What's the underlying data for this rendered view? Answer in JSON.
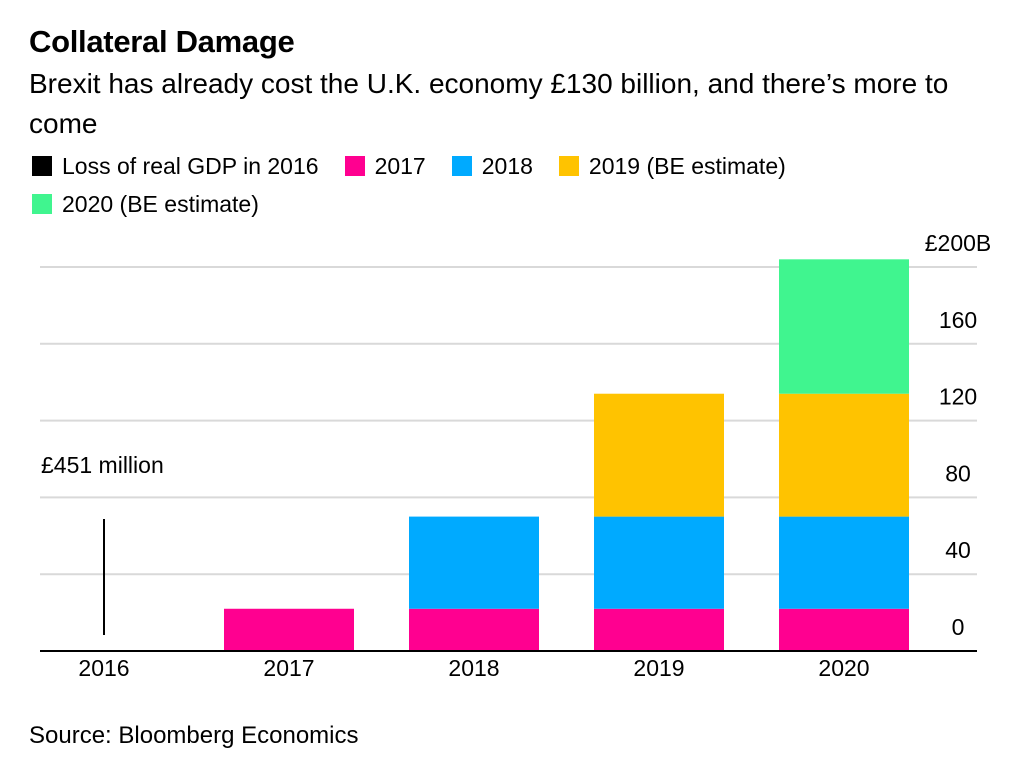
{
  "title": "Collateral Damage",
  "subtitle": "Brexit has already cost the U.K. economy £130 billion, and there’s more to come",
  "source": "Source: Bloomberg Economics",
  "chart_data": {
    "type": "bar",
    "stacked": true,
    "categories": [
      "2016",
      "2017",
      "2018",
      "2019",
      "2020"
    ],
    "series": [
      {
        "name": "Loss of real GDP in 2016",
        "color": "#000000",
        "values": [
          0.451,
          0,
          0,
          0,
          0
        ]
      },
      {
        "name": "2017",
        "color": "#ff0090",
        "values": [
          0,
          22,
          22,
          22,
          22
        ]
      },
      {
        "name": "2018",
        "color": "#00aaff",
        "values": [
          0,
          0,
          48,
          48,
          48
        ]
      },
      {
        "name": "2019 (BE estimate)",
        "color": "#ffc300",
        "values": [
          0,
          0,
          0,
          64,
          64
        ]
      },
      {
        "name": "2020 (BE estimate)",
        "color": "#40f58f",
        "values": [
          0,
          0,
          0,
          0,
          70
        ]
      }
    ],
    "annotation": "£451 million",
    "y_ticks": [
      "0",
      "40",
      "80",
      "120",
      "160",
      "£200B"
    ],
    "y_tick_values": [
      0,
      40,
      80,
      120,
      160,
      200
    ],
    "ylim": [
      0,
      200
    ],
    "xlabel": "",
    "ylabel": "",
    "grid": true,
    "legend_position": "top"
  }
}
